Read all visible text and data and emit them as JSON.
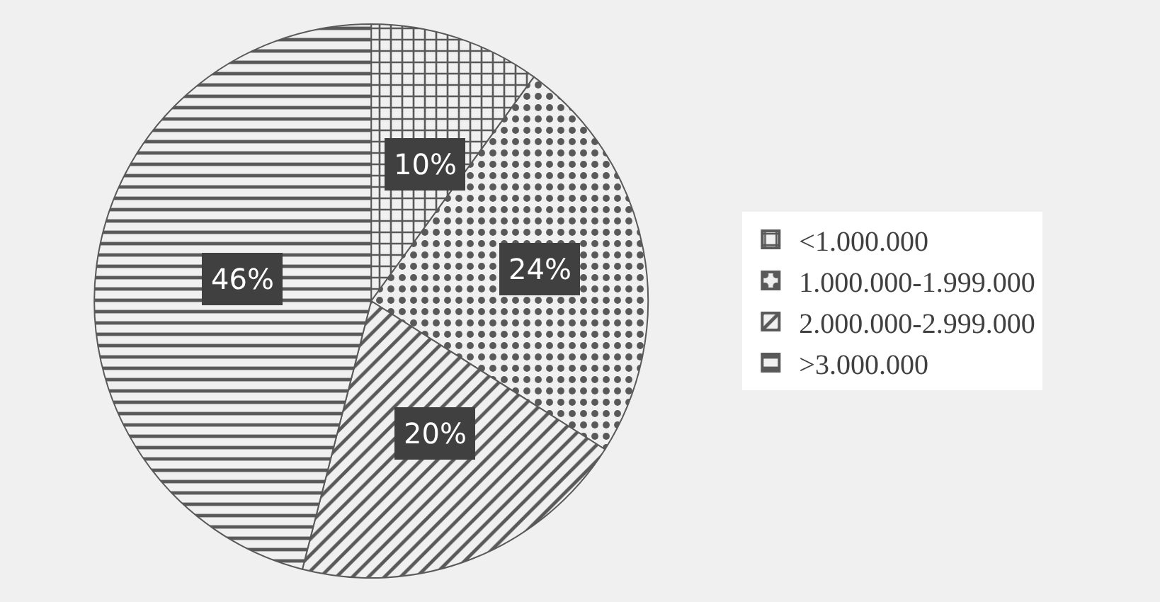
{
  "chart_data": {
    "type": "pie",
    "categories": [
      "<1.000.000",
      "1.000.000-1.999.000",
      "2.000.000-2.999.000",
      ">3.000.000"
    ],
    "values": [
      10,
      24,
      20,
      46
    ],
    "value_labels": [
      "10%",
      "24%",
      "20%",
      "46%"
    ],
    "colors": [
      "#595959",
      "#595959",
      "#595959",
      "#595959"
    ],
    "legend": "right"
  }
}
